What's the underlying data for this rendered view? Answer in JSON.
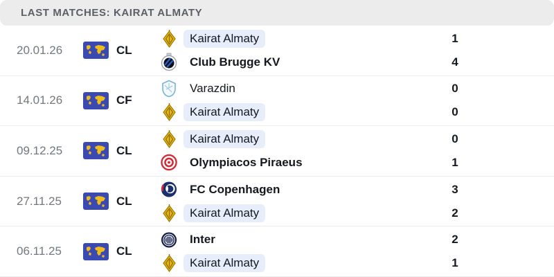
{
  "header": {
    "title": "LAST MATCHES: KAIRAT ALMATY"
  },
  "team_of_interest": "Kairat Almaty",
  "colors": {
    "header_bg": "#ececed",
    "header_text": "#5b5f66",
    "date_text": "#73777e",
    "dark_text": "#15181f",
    "highlight_bg": "#e7edfb",
    "row_border": "#ebebed",
    "flag_bg": "#3a4ab1",
    "flag_map": "#f0bc1c"
  },
  "matches": [
    {
      "date": "20.01.26",
      "competition": "CL",
      "rows": [
        {
          "name": "Kairat Almaty",
          "score": "1",
          "logo": "kairat-almaty-logo",
          "highlight": true,
          "bold": false
        },
        {
          "name": "Club Brugge KV",
          "score": "4",
          "logo": "club-brugge-logo",
          "highlight": false,
          "bold": true
        }
      ]
    },
    {
      "date": "14.01.26",
      "competition": "CF",
      "rows": [
        {
          "name": "Varazdin",
          "score": "0",
          "logo": "varazdin-logo",
          "highlight": false,
          "bold": false
        },
        {
          "name": "Kairat Almaty",
          "score": "0",
          "logo": "kairat-almaty-logo",
          "highlight": true,
          "bold": false
        }
      ]
    },
    {
      "date": "09.12.25",
      "competition": "CL",
      "rows": [
        {
          "name": "Kairat Almaty",
          "score": "0",
          "logo": "kairat-almaty-logo",
          "highlight": true,
          "bold": false
        },
        {
          "name": "Olympiacos Piraeus",
          "score": "1",
          "logo": "olympiacos-logo",
          "highlight": false,
          "bold": true
        }
      ]
    },
    {
      "date": "27.11.25",
      "competition": "CL",
      "rows": [
        {
          "name": "FC Copenhagen",
          "score": "3",
          "logo": "fc-copenhagen-logo",
          "highlight": false,
          "bold": true
        },
        {
          "name": "Kairat Almaty",
          "score": "2",
          "logo": "kairat-almaty-logo",
          "highlight": true,
          "bold": false
        }
      ]
    },
    {
      "date": "06.11.25",
      "competition": "CL",
      "rows": [
        {
          "name": "Inter",
          "score": "2",
          "logo": "inter-logo",
          "highlight": false,
          "bold": true
        },
        {
          "name": "Kairat Almaty",
          "score": "1",
          "logo": "kairat-almaty-logo",
          "highlight": true,
          "bold": false
        }
      ]
    }
  ]
}
